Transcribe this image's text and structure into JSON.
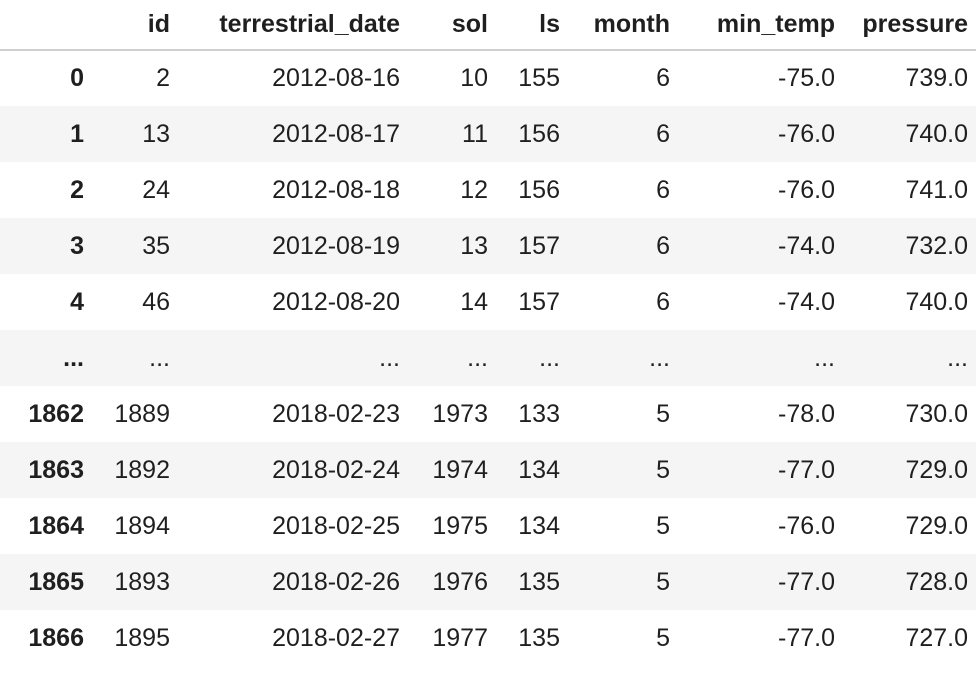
{
  "table": {
    "index_header": "",
    "columns": [
      "id",
      "terrestrial_date",
      "sol",
      "ls",
      "month",
      "min_temp",
      "pressure"
    ],
    "rows": [
      {
        "index": "0",
        "cells": [
          "2",
          "2012-08-16",
          "10",
          "155",
          "6",
          "-75.0",
          "739.0"
        ]
      },
      {
        "index": "1",
        "cells": [
          "13",
          "2012-08-17",
          "11",
          "156",
          "6",
          "-76.0",
          "740.0"
        ]
      },
      {
        "index": "2",
        "cells": [
          "24",
          "2012-08-18",
          "12",
          "156",
          "6",
          "-76.0",
          "741.0"
        ]
      },
      {
        "index": "3",
        "cells": [
          "35",
          "2012-08-19",
          "13",
          "157",
          "6",
          "-74.0",
          "732.0"
        ]
      },
      {
        "index": "4",
        "cells": [
          "46",
          "2012-08-20",
          "14",
          "157",
          "6",
          "-74.0",
          "740.0"
        ]
      },
      {
        "index": "...",
        "cells": [
          "...",
          "...",
          "...",
          "...",
          "...",
          "...",
          "..."
        ]
      },
      {
        "index": "1862",
        "cells": [
          "1889",
          "2018-02-23",
          "1973",
          "133",
          "5",
          "-78.0",
          "730.0"
        ]
      },
      {
        "index": "1863",
        "cells": [
          "1892",
          "2018-02-24",
          "1974",
          "134",
          "5",
          "-77.0",
          "729.0"
        ]
      },
      {
        "index": "1864",
        "cells": [
          "1894",
          "2018-02-25",
          "1975",
          "134",
          "5",
          "-76.0",
          "729.0"
        ]
      },
      {
        "index": "1865",
        "cells": [
          "1893",
          "2018-02-26",
          "1976",
          "135",
          "5",
          "-77.0",
          "728.0"
        ]
      },
      {
        "index": "1866",
        "cells": [
          "1895",
          "2018-02-27",
          "1977",
          "135",
          "5",
          "-77.0",
          "727.0"
        ]
      }
    ]
  },
  "colors": {
    "text": "#1f1f1f",
    "stripe": "#f5f5f5",
    "header_rule": "#d0d0d0"
  }
}
